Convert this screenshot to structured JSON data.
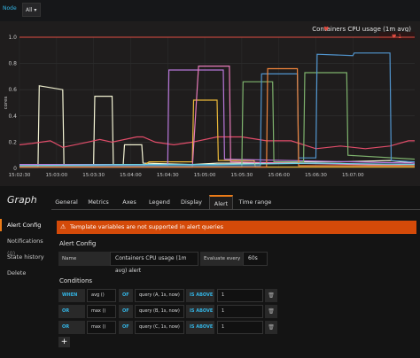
{
  "topbar": {
    "node_label": "Node",
    "node_value": "All ▾"
  },
  "panel": {
    "title": "Containers CPU usage (1m avg)",
    "alert_marker": "♥",
    "ylabel": "cores",
    "threshold": 1
  },
  "chart_data": {
    "type": "line",
    "title": "Containers CPU usage (1m avg)",
    "xlabel": "",
    "ylabel": "cores",
    "ylim": [
      0,
      1.0
    ],
    "yticks": [
      "0",
      "0.2",
      "0.4",
      "0.6",
      "0.8",
      "1.0"
    ],
    "xticks": [
      "15:02:30",
      "15:03:00",
      "15:03:30",
      "15:04:00",
      "15:04:30",
      "15:05:00",
      "15:05:30",
      "15:06:00",
      "15:06:30",
      "15:07:00"
    ],
    "xrange": [
      "15:02:30",
      "15:07:50"
    ],
    "threshold": 1.0,
    "series": [
      {
        "color": "#f2f2d2",
        "points": [
          [
            0,
            0.01
          ],
          [
            15,
            0.01
          ],
          [
            16,
            0.63
          ],
          [
            35,
            0.6
          ],
          [
            36,
            0.02
          ],
          [
            60,
            0.02
          ],
          [
            61,
            0.55
          ],
          [
            75,
            0.55
          ],
          [
            76,
            0.03
          ],
          [
            84,
            0.03
          ],
          [
            85,
            0.18
          ],
          [
            99,
            0.18
          ],
          [
            100,
            0.04
          ],
          [
            140,
            0.03
          ],
          [
            160,
            0.04
          ],
          [
            200,
            0.04
          ],
          [
            230,
            0.05
          ],
          [
            260,
            0.05
          ],
          [
            300,
            0.06
          ],
          [
            320,
            0.04
          ]
        ]
      },
      {
        "color": "#e24d6a",
        "points": [
          [
            0,
            0.18
          ],
          [
            10,
            0.19
          ],
          [
            25,
            0.21
          ],
          [
            35,
            0.16
          ],
          [
            55,
            0.2
          ],
          [
            65,
            0.22
          ],
          [
            75,
            0.2
          ],
          [
            95,
            0.24
          ],
          [
            100,
            0.24
          ],
          [
            110,
            0.2
          ],
          [
            125,
            0.18
          ],
          [
            140,
            0.2
          ],
          [
            160,
            0.24
          ],
          [
            180,
            0.24
          ],
          [
            200,
            0.21
          ],
          [
            220,
            0.21
          ],
          [
            240,
            0.15
          ],
          [
            260,
            0.17
          ],
          [
            280,
            0.15
          ],
          [
            300,
            0.17
          ],
          [
            315,
            0.21
          ],
          [
            320,
            0.21
          ]
        ]
      },
      {
        "color": "#eab839",
        "points": [
          [
            0,
            0.02
          ],
          [
            100,
            0.02
          ],
          [
            105,
            0.05
          ],
          [
            140,
            0.05
          ],
          [
            141,
            0.52
          ],
          [
            160,
            0.52
          ],
          [
            161,
            0.06
          ],
          [
            190,
            0.06
          ],
          [
            191,
            0.01
          ],
          [
            320,
            0.01
          ]
        ]
      },
      {
        "color": "#b877d9",
        "points": [
          [
            0,
            0.03
          ],
          [
            120,
            0.03
          ],
          [
            121,
            0.75
          ],
          [
            165,
            0.75
          ],
          [
            166,
            0.07
          ],
          [
            320,
            0.04
          ]
        ]
      },
      {
        "color": "#e57ab9",
        "points": [
          [
            0,
            0.01
          ],
          [
            140,
            0.01
          ],
          [
            145,
            0.78
          ],
          [
            170,
            0.78
          ],
          [
            171,
            0.05
          ],
          [
            320,
            0.02
          ]
        ]
      },
      {
        "color": "#7eb26d",
        "points": [
          [
            0,
            0.01
          ],
          [
            180,
            0.01
          ],
          [
            181,
            0.66
          ],
          [
            205,
            0.66
          ],
          [
            206,
            0.05
          ],
          [
            230,
            0.05
          ],
          [
            231,
            0.73
          ],
          [
            265,
            0.73
          ],
          [
            266,
            0.1
          ],
          [
            320,
            0.07
          ]
        ]
      },
      {
        "color": "#5195ce",
        "points": [
          [
            0,
            0.02
          ],
          [
            195,
            0.02
          ],
          [
            196,
            0.72
          ],
          [
            225,
            0.72
          ],
          [
            226,
            0.08
          ],
          [
            240,
            0.08
          ],
          [
            241,
            0.87
          ],
          [
            270,
            0.86
          ],
          [
            271,
            0.88
          ],
          [
            300,
            0.88
          ],
          [
            301,
            0.06
          ],
          [
            320,
            0.05
          ]
        ]
      },
      {
        "color": "#ef843c",
        "points": [
          [
            0,
            0.01
          ],
          [
            200,
            0.01
          ],
          [
            201,
            0.76
          ],
          [
            225,
            0.76
          ],
          [
            226,
            0.02
          ],
          [
            320,
            0.02
          ]
        ]
      },
      {
        "color": "#6ed0e0",
        "points": [
          [
            0,
            0.02
          ],
          [
            80,
            0.03
          ],
          [
            160,
            0.03
          ],
          [
            240,
            0.04
          ],
          [
            320,
            0.03
          ]
        ]
      }
    ]
  },
  "editor": {
    "title": "Graph",
    "tabs": [
      "General",
      "Metrics",
      "Axes",
      "Legend",
      "Display",
      "Alert",
      "Time range"
    ],
    "active_tab": "Alert",
    "side": [
      {
        "label": "Alert Config",
        "count": ""
      },
      {
        "label": "Notifications",
        "count": "(0)"
      },
      {
        "label": "State history",
        "count": ""
      },
      {
        "label": "Delete",
        "count": ""
      }
    ],
    "warning": "Template variables are not supported in alert queries",
    "warning_icon": "⚠",
    "alert_config": {
      "heading": "Alert Config",
      "name_label": "Name",
      "name_value": "Containers CPU usage (1m avg) alert",
      "eval_label": "Evaluate every",
      "eval_value": "60s"
    },
    "conditions": {
      "heading": "Conditions",
      "rows": [
        {
          "op": "WHEN",
          "func": "avg ()",
          "of": "OF",
          "query": "query (A, 1s, now)",
          "cmp": "IS ABOVE",
          "value": "1"
        },
        {
          "op": "OR",
          "func": "max ()",
          "of": "OF",
          "query": "query (B, 1s, now)",
          "cmp": "IS ABOVE",
          "value": "1"
        },
        {
          "op": "OR",
          "func": "max ()",
          "of": "OF",
          "query": "query (C, 1s, now)",
          "cmp": "IS ABOVE",
          "value": "1"
        }
      ],
      "trash_icon": "🗑",
      "add_label": "+"
    }
  }
}
